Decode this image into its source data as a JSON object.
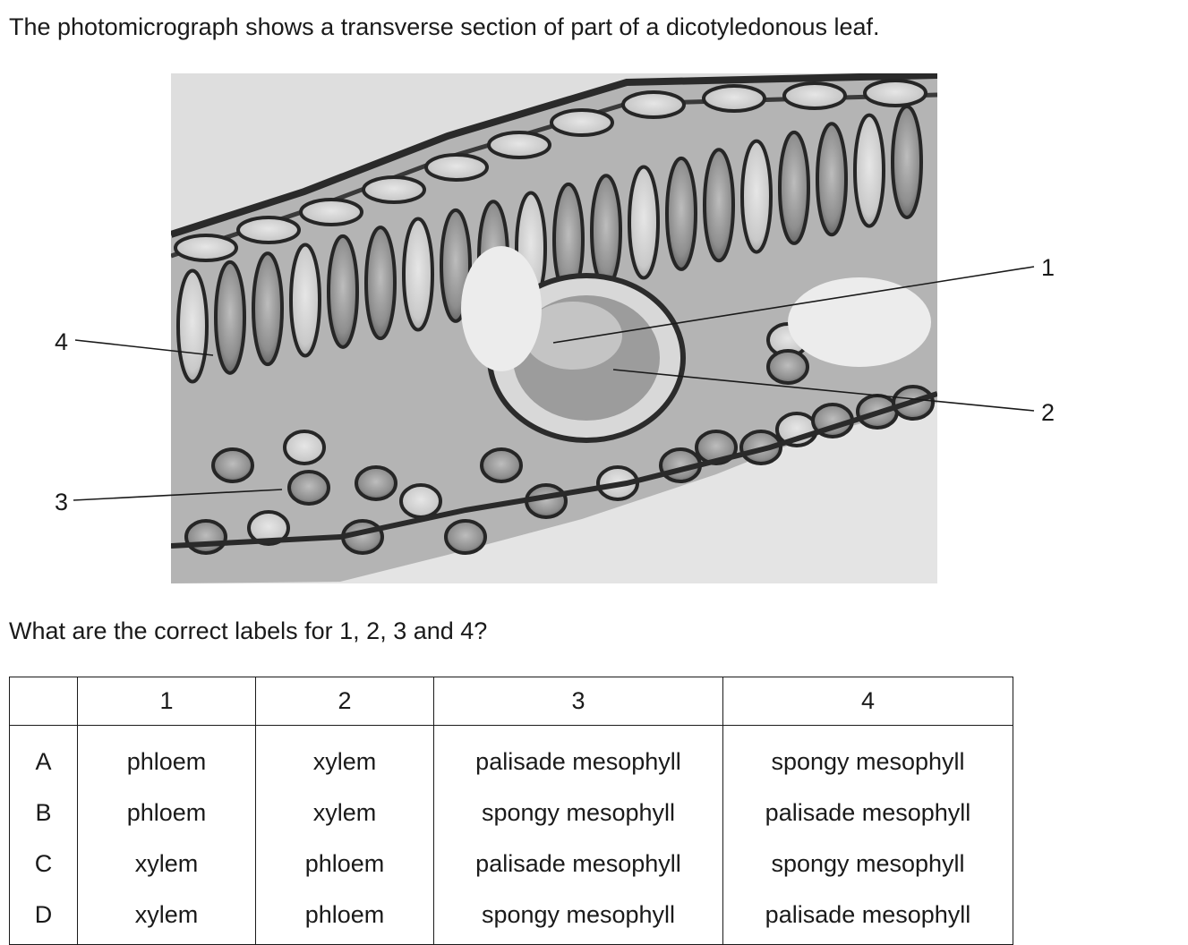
{
  "intro_text": "The photomicrograph shows a transverse section of part of a dicotyledonous leaf.",
  "question_text": "What are the correct labels for 1, 2, 3 and 4?",
  "image_labels": [
    "1",
    "2",
    "3",
    "4"
  ],
  "table": {
    "headers": [
      "",
      "1",
      "2",
      "3",
      "4"
    ],
    "rows": [
      {
        "key": "A",
        "c1": "phloem",
        "c2": "xylem",
        "c3": "palisade mesophyll",
        "c4": "spongy mesophyll"
      },
      {
        "key": "B",
        "c1": "phloem",
        "c2": "xylem",
        "c3": "spongy mesophyll",
        "c4": "palisade mesophyll"
      },
      {
        "key": "C",
        "c1": "xylem",
        "c2": "phloem",
        "c3": "palisade mesophyll",
        "c4": "spongy mesophyll"
      },
      {
        "key": "D",
        "c1": "xylem",
        "c2": "phloem",
        "c3": "spongy mesophyll",
        "c4": "palisade mesophyll"
      }
    ]
  }
}
